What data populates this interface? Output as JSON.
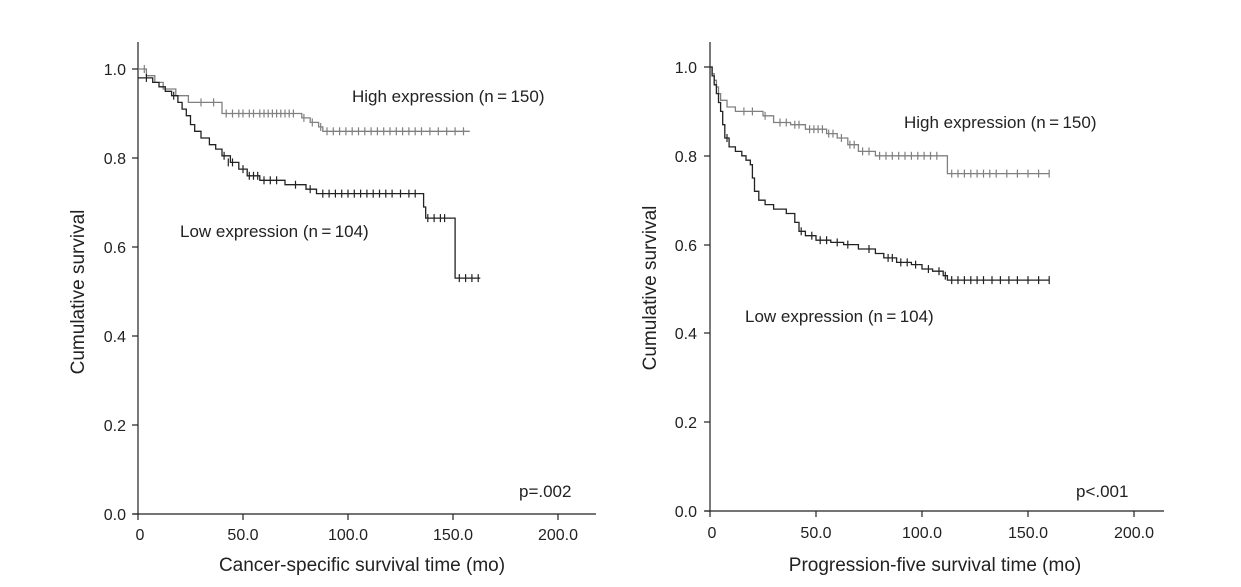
{
  "chart_data": [
    {
      "type": "line",
      "subtype": "kaplan-meier",
      "xlabel": "Cancer-specific survival time (mo)",
      "ylabel": "Cumulative survival",
      "xlim": [
        0,
        200
      ],
      "ylim": [
        0,
        1
      ],
      "xticks": [
        0,
        50,
        100,
        150,
        200
      ],
      "xtick_labels": [
        "0",
        "50.0",
        "100.0",
        "150.0",
        "200.0"
      ],
      "yticks": [
        0,
        0.2,
        0.4,
        0.6,
        0.8,
        1.0
      ],
      "ytick_labels": [
        "0.0",
        "0.2",
        "0.4",
        "0.6",
        "0.8",
        "1.0"
      ],
      "annotation": "p=.002",
      "series": [
        {
          "name": "High expression (n=150)",
          "label": "High expression (n = 150)",
          "color": "#808080",
          "steps": [
            [
              0,
              1.0
            ],
            [
              4,
              0.985
            ],
            [
              8,
              0.97
            ],
            [
              12,
              0.955
            ],
            [
              18,
              0.94
            ],
            [
              24,
              0.925
            ],
            [
              40,
              0.9
            ],
            [
              75,
              0.9
            ],
            [
              78,
              0.89
            ],
            [
              82,
              0.88
            ],
            [
              86,
              0.87
            ],
            [
              88,
              0.86
            ],
            [
              158,
              0.86
            ]
          ],
          "censored": [
            [
              3,
              1.0
            ],
            [
              30,
              0.925
            ],
            [
              36,
              0.925
            ],
            [
              42,
              0.9
            ],
            [
              45,
              0.9
            ],
            [
              48,
              0.9
            ],
            [
              50,
              0.9
            ],
            [
              53,
              0.9
            ],
            [
              55,
              0.9
            ],
            [
              58,
              0.9
            ],
            [
              60,
              0.9
            ],
            [
              62,
              0.9
            ],
            [
              64,
              0.9
            ],
            [
              66,
              0.9
            ],
            [
              68,
              0.9
            ],
            [
              70,
              0.9
            ],
            [
              72,
              0.9
            ],
            [
              74,
              0.9
            ],
            [
              79,
              0.89
            ],
            [
              83,
              0.88
            ],
            [
              87,
              0.87
            ],
            [
              90,
              0.86
            ],
            [
              93,
              0.86
            ],
            [
              96,
              0.86
            ],
            [
              99,
              0.86
            ],
            [
              102,
              0.86
            ],
            [
              105,
              0.86
            ],
            [
              108,
              0.86
            ],
            [
              111,
              0.86
            ],
            [
              114,
              0.86
            ],
            [
              117,
              0.86
            ],
            [
              120,
              0.86
            ],
            [
              123,
              0.86
            ],
            [
              126,
              0.86
            ],
            [
              129,
              0.86
            ],
            [
              132,
              0.86
            ],
            [
              135,
              0.86
            ],
            [
              139,
              0.86
            ],
            [
              143,
              0.86
            ],
            [
              147,
              0.86
            ],
            [
              151,
              0.86
            ],
            [
              155,
              0.86
            ]
          ]
        },
        {
          "name": "Low expression (n=104)",
          "label": "Low expression (n = 104)",
          "color": "#222222",
          "steps": [
            [
              0,
              0.98
            ],
            [
              7,
              0.97
            ],
            [
              10,
              0.96
            ],
            [
              13,
              0.95
            ],
            [
              16,
              0.94
            ],
            [
              19,
              0.925
            ],
            [
              21,
              0.91
            ],
            [
              23,
              0.895
            ],
            [
              25,
              0.875
            ],
            [
              27,
              0.86
            ],
            [
              30,
              0.845
            ],
            [
              34,
              0.83
            ],
            [
              37,
              0.82
            ],
            [
              40,
              0.805
            ],
            [
              44,
              0.79
            ],
            [
              48,
              0.775
            ],
            [
              52,
              0.76
            ],
            [
              58,
              0.75
            ],
            [
              70,
              0.74
            ],
            [
              80,
              0.73
            ],
            [
              85,
              0.72
            ],
            [
              134,
              0.72
            ],
            [
              136,
              0.69
            ],
            [
              137,
              0.665
            ],
            [
              150,
              0.665
            ],
            [
              151,
              0.53
            ],
            [
              163,
              0.53
            ]
          ],
          "censored": [
            [
              4,
              0.98
            ],
            [
              17,
              0.94
            ],
            [
              41,
              0.805
            ],
            [
              43,
              0.79
            ],
            [
              45,
              0.79
            ],
            [
              50,
              0.775
            ],
            [
              53,
              0.76
            ],
            [
              55,
              0.76
            ],
            [
              57,
              0.76
            ],
            [
              60,
              0.75
            ],
            [
              63,
              0.75
            ],
            [
              66,
              0.75
            ],
            [
              75,
              0.74
            ],
            [
              82,
              0.73
            ],
            [
              88,
              0.72
            ],
            [
              91,
              0.72
            ],
            [
              94,
              0.72
            ],
            [
              97,
              0.72
            ],
            [
              100,
              0.72
            ],
            [
              103,
              0.72
            ],
            [
              106,
              0.72
            ],
            [
              109,
              0.72
            ],
            [
              112,
              0.72
            ],
            [
              115,
              0.72
            ],
            [
              118,
              0.72
            ],
            [
              121,
              0.72
            ],
            [
              125,
              0.72
            ],
            [
              129,
              0.72
            ],
            [
              132,
              0.72
            ],
            [
              138,
              0.665
            ],
            [
              141,
              0.665
            ],
            [
              144,
              0.665
            ],
            [
              146,
              0.665
            ],
            [
              153,
              0.53
            ],
            [
              156,
              0.53
            ],
            [
              159,
              0.53
            ],
            [
              162,
              0.53
            ]
          ]
        }
      ]
    },
    {
      "type": "line",
      "subtype": "kaplan-meier",
      "xlabel": "Progression-five survival time (mo)",
      "ylabel": "Cumulative survival",
      "xlim": [
        0,
        200
      ],
      "ylim": [
        0,
        1
      ],
      "xticks": [
        0,
        50,
        100,
        150,
        200
      ],
      "xtick_labels": [
        "0",
        "50.0",
        "100.0",
        "150.0",
        "200.0"
      ],
      "yticks": [
        0,
        0.2,
        0.4,
        0.6,
        0.8,
        1.0
      ],
      "ytick_labels": [
        "0.0",
        "0.2",
        "0.4",
        "0.6",
        "0.8",
        "1.0"
      ],
      "annotation": "p<.001",
      "series": [
        {
          "name": "High expression (n=150)",
          "label": "High expression (n = 150)",
          "color": "#808080",
          "steps": [
            [
              0,
              1.0
            ],
            [
              1,
              0.985
            ],
            [
              2,
              0.97
            ],
            [
              3,
              0.955
            ],
            [
              4,
              0.94
            ],
            [
              5,
              0.925
            ],
            [
              8,
              0.91
            ],
            [
              12,
              0.9
            ],
            [
              25,
              0.89
            ],
            [
              30,
              0.875
            ],
            [
              38,
              0.87
            ],
            [
              45,
              0.86
            ],
            [
              55,
              0.85
            ],
            [
              60,
              0.84
            ],
            [
              65,
              0.825
            ],
            [
              70,
              0.81
            ],
            [
              78,
              0.8
            ],
            [
              110,
              0.8
            ],
            [
              112,
              0.76
            ],
            [
              160,
              0.76
            ]
          ],
          "censored": [
            [
              16,
              0.9
            ],
            [
              20,
              0.9
            ],
            [
              26,
              0.89
            ],
            [
              33,
              0.875
            ],
            [
              36,
              0.875
            ],
            [
              40,
              0.87
            ],
            [
              42,
              0.87
            ],
            [
              47,
              0.86
            ],
            [
              49,
              0.86
            ],
            [
              51,
              0.86
            ],
            [
              53,
              0.86
            ],
            [
              56,
              0.85
            ],
            [
              58,
              0.85
            ],
            [
              62,
              0.84
            ],
            [
              66,
              0.825
            ],
            [
              68,
              0.825
            ],
            [
              72,
              0.81
            ],
            [
              75,
              0.81
            ],
            [
              80,
              0.8
            ],
            [
              83,
              0.8
            ],
            [
              86,
              0.8
            ],
            [
              89,
              0.8
            ],
            [
              92,
              0.8
            ],
            [
              95,
              0.8
            ],
            [
              98,
              0.8
            ],
            [
              101,
              0.8
            ],
            [
              104,
              0.8
            ],
            [
              107,
              0.8
            ],
            [
              114,
              0.76
            ],
            [
              117,
              0.76
            ],
            [
              120,
              0.76
            ],
            [
              123,
              0.76
            ],
            [
              126,
              0.76
            ],
            [
              129,
              0.76
            ],
            [
              132,
              0.76
            ],
            [
              135,
              0.76
            ],
            [
              140,
              0.76
            ],
            [
              145,
              0.76
            ],
            [
              150,
              0.76
            ],
            [
              155,
              0.76
            ],
            [
              160,
              0.76
            ]
          ]
        },
        {
          "name": "Low expression (n=104)",
          "label": "Low expression (n = 104)",
          "color": "#222222",
          "steps": [
            [
              0,
              1.0
            ],
            [
              1,
              0.98
            ],
            [
              2,
              0.96
            ],
            [
              3,
              0.94
            ],
            [
              4,
              0.92
            ],
            [
              5,
              0.9
            ],
            [
              6,
              0.87
            ],
            [
              7,
              0.84
            ],
            [
              9,
              0.82
            ],
            [
              12,
              0.81
            ],
            [
              15,
              0.8
            ],
            [
              17,
              0.79
            ],
            [
              19,
              0.78
            ],
            [
              20,
              0.75
            ],
            [
              21,
              0.72
            ],
            [
              23,
              0.7
            ],
            [
              26,
              0.69
            ],
            [
              30,
              0.68
            ],
            [
              36,
              0.67
            ],
            [
              40,
              0.65
            ],
            [
              42,
              0.63
            ],
            [
              45,
              0.62
            ],
            [
              50,
              0.61
            ],
            [
              57,
              0.605
            ],
            [
              63,
              0.6
            ],
            [
              70,
              0.59
            ],
            [
              78,
              0.58
            ],
            [
              82,
              0.57
            ],
            [
              88,
              0.56
            ],
            [
              95,
              0.555
            ],
            [
              100,
              0.545
            ],
            [
              105,
              0.54
            ],
            [
              110,
              0.53
            ],
            [
              112,
              0.52
            ],
            [
              160,
              0.52
            ]
          ],
          "censored": [
            [
              8,
              0.84
            ],
            [
              43,
              0.63
            ],
            [
              48,
              0.62
            ],
            [
              52,
              0.61
            ],
            [
              55,
              0.61
            ],
            [
              60,
              0.605
            ],
            [
              65,
              0.6
            ],
            [
              75,
              0.59
            ],
            [
              84,
              0.57
            ],
            [
              86,
              0.57
            ],
            [
              90,
              0.56
            ],
            [
              93,
              0.56
            ],
            [
              97,
              0.555
            ],
            [
              103,
              0.545
            ],
            [
              108,
              0.54
            ],
            [
              111,
              0.53
            ],
            [
              114,
              0.52
            ],
            [
              117,
              0.52
            ],
            [
              120,
              0.52
            ],
            [
              123,
              0.52
            ],
            [
              126,
              0.52
            ],
            [
              129,
              0.52
            ],
            [
              133,
              0.52
            ],
            [
              137,
              0.52
            ],
            [
              141,
              0.52
            ],
            [
              145,
              0.52
            ],
            [
              150,
              0.52
            ],
            [
              155,
              0.52
            ],
            [
              160,
              0.52
            ]
          ]
        }
      ]
    }
  ]
}
